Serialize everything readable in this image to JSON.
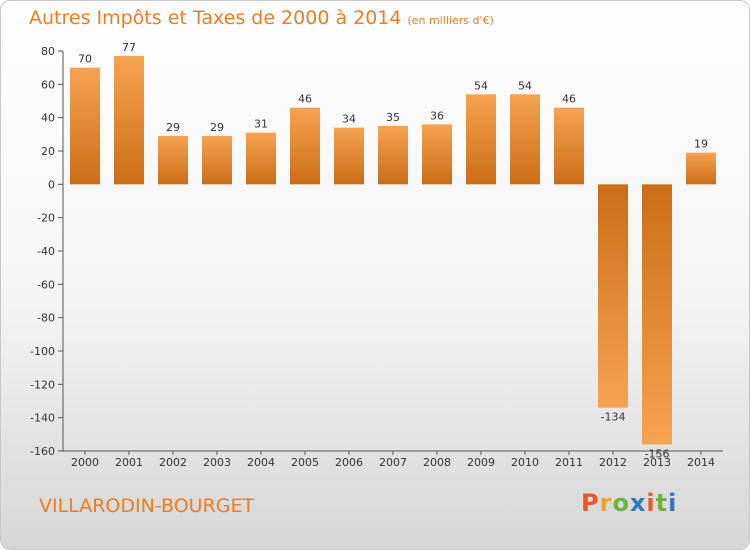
{
  "page": {
    "title": "Autres Impôts et Taxes de 2000 à 2014",
    "subtitle": "(en milliers d'€)",
    "commune": "VILLARODIN-BOURGET",
    "logo": "Proxiti"
  },
  "colors": {
    "accent": "#f07c1e",
    "bar_light": "#f6a350",
    "bar_dark": "#cc6d16",
    "logo_letters": [
      "#e8562a",
      "#f3a21c",
      "#6fb33a",
      "#2f77c4",
      "#e8562a",
      "#6fb33a",
      "#2f77c4"
    ]
  },
  "chart_data": {
    "type": "bar",
    "title": "Autres Impôts et Taxes de 2000 à 2014",
    "subtitle": "(en milliers d'€)",
    "xlabel": "",
    "ylabel": "",
    "categories": [
      "2000",
      "2001",
      "2002",
      "2003",
      "2004",
      "2005",
      "2006",
      "2007",
      "2008",
      "2009",
      "2010",
      "2011",
      "2012",
      "2013",
      "2014"
    ],
    "values": [
      70,
      77,
      29,
      29,
      31,
      46,
      34,
      35,
      36,
      54,
      54,
      46,
      -134,
      -156,
      19
    ],
    "ylim": [
      -160,
      80
    ],
    "yticks": [
      80,
      60,
      40,
      20,
      0,
      -20,
      -40,
      -60,
      -80,
      -100,
      -120,
      -140,
      -160
    ],
    "grid": false,
    "legend": "none"
  }
}
